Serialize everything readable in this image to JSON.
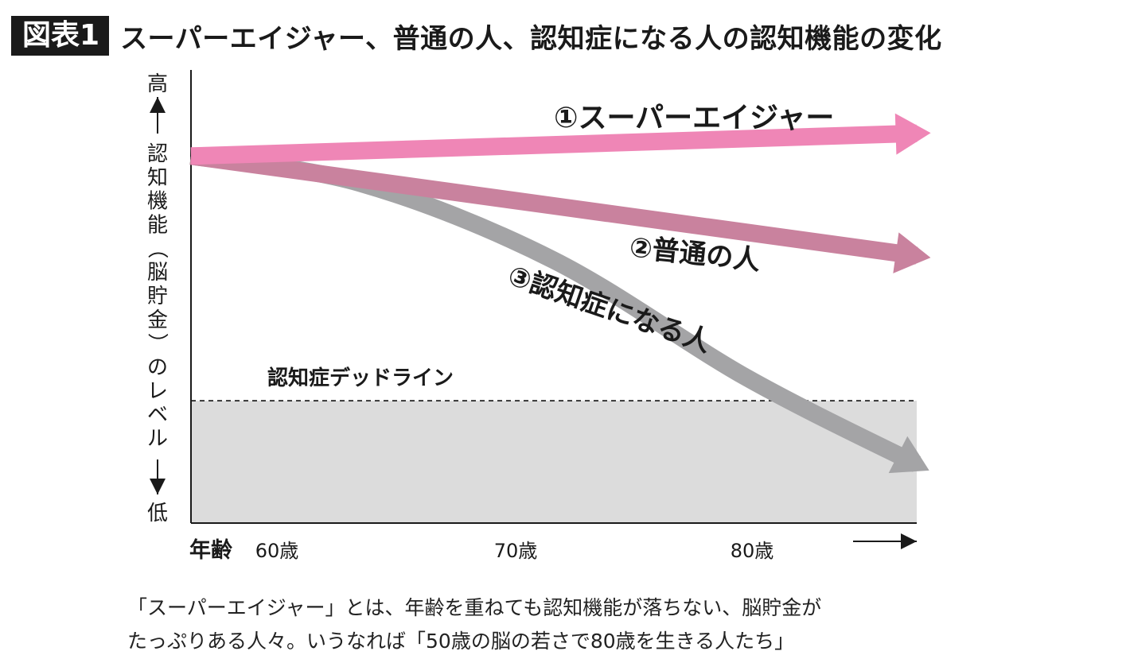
{
  "figure_label": "図表1",
  "title": "スーパーエイジャー、普通の人、認知症になる人の認知機能の変化",
  "caption_lines": [
    "「スーパーエイジャー」とは、年齢を重ねても認知機能が落ちない、脳貯金が",
    "たっぷりある人々。いうなれば「50歳の脳の若さで80歳を生きる人たち」"
  ],
  "chart_data": {
    "type": "line",
    "title": "スーパーエイジャー、普通の人、認知症になる人の認知機能の変化",
    "xlabel": "年齢",
    "ylabel": "認知機能（脳貯金）のレベル",
    "y_high_label": "高",
    "y_low_label": "低",
    "x_ticks": [
      "60歳",
      "70歳",
      "80歳"
    ],
    "x_range": [
      55,
      85
    ],
    "y_range": [
      0,
      100
    ],
    "grid": false,
    "series": [
      {
        "name": "①スーパーエイジャー",
        "color": "#ef86b6",
        "x": [
          55,
          85
        ],
        "y": [
          81,
          86
        ]
      },
      {
        "name": "②普通の人",
        "color": "#c9829e",
        "x": [
          55,
          70,
          85
        ],
        "y": [
          81,
          70,
          59
        ]
      },
      {
        "name": "③認知症になる人",
        "color": "#a4a4a6",
        "x": [
          55,
          62,
          70,
          78,
          85
        ],
        "y": [
          81,
          75,
          58,
          32,
          13
        ]
      }
    ],
    "threshold": {
      "label": "認知症デッドライン",
      "y": 27,
      "line_style": "dashed",
      "fill": "#dcdcdc"
    }
  }
}
